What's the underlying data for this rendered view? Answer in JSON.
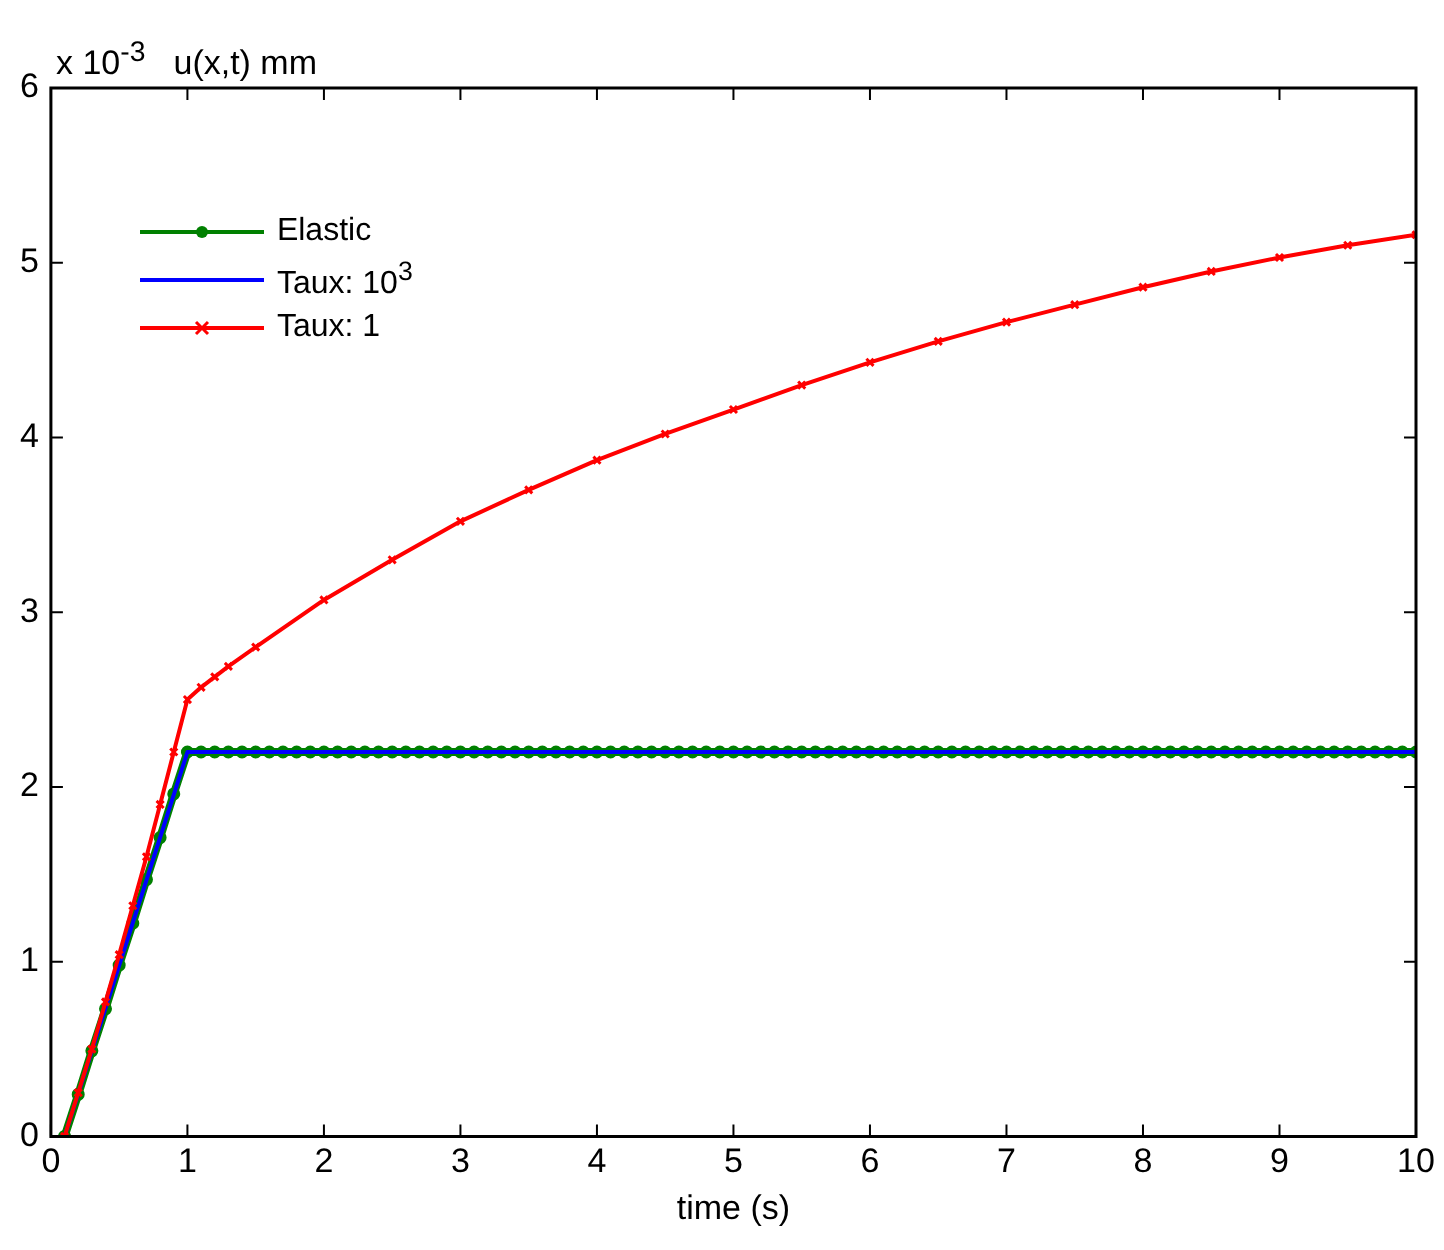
{
  "chart_data": {
    "type": "line",
    "xlabel": "time (s)",
    "ylabel": "u(x,t) mm",
    "annotations": [
      "x 10$^{-3}$"
    ],
    "xlim": [
      0,
      10
    ],
    "xticks": [
      0,
      1,
      2,
      3,
      4,
      5,
      6,
      7,
      8,
      9,
      10
    ],
    "ylim": [
      0,
      6
    ],
    "yticks": [
      0,
      1,
      2,
      3,
      4,
      5,
      6
    ],
    "grid": false,
    "legend": "top left",
    "line_style": "solid",
    "series": [
      {
        "name": "Elastic",
        "color": "#008000",
        "marker": "circle",
        "x": [
          0.1,
          0.2,
          0.3,
          0.4,
          0.5,
          0.6,
          0.7,
          0.8,
          0.9,
          1,
          1.1,
          1.2,
          1.3,
          1.4,
          1.5,
          1.6,
          1.7,
          1.8,
          1.9,
          2,
          2.1,
          2.2,
          2.3,
          2.4,
          2.5,
          2.6,
          2.7,
          2.8,
          2.9,
          3,
          3.1,
          3.2,
          3.3,
          3.4,
          3.5,
          3.6,
          3.7,
          3.8,
          3.9,
          4,
          4.1,
          4.2,
          4.3,
          4.4,
          4.5,
          4.6,
          4.7,
          4.8,
          4.9,
          5,
          5.1,
          5.2,
          5.3,
          5.4,
          5.5,
          5.6,
          5.7,
          5.8,
          5.9,
          6,
          6.1,
          6.2,
          6.3,
          6.4,
          6.5,
          6.6,
          6.7,
          6.8,
          6.9,
          7,
          7.1,
          7.2,
          7.3,
          7.4,
          7.5,
          7.6,
          7.7,
          7.8,
          7.9,
          8,
          8.1,
          8.2,
          8.3,
          8.4,
          8.5,
          8.6,
          8.7,
          8.8,
          8.9,
          9,
          9.1,
          9.2,
          9.3,
          9.4,
          9.5,
          9.6,
          9.7,
          9.8,
          9.9,
          10
        ],
        "values": [
          0,
          0.24,
          0.49,
          0.73,
          0.98,
          1.22,
          1.47,
          1.71,
          1.96,
          2.2,
          2.2,
          2.2,
          2.2,
          2.2,
          2.2,
          2.2,
          2.2,
          2.2,
          2.2,
          2.2,
          2.2,
          2.2,
          2.2,
          2.2,
          2.2,
          2.2,
          2.2,
          2.2,
          2.2,
          2.2,
          2.2,
          2.2,
          2.2,
          2.2,
          2.2,
          2.2,
          2.2,
          2.2,
          2.2,
          2.2,
          2.2,
          2.2,
          2.2,
          2.2,
          2.2,
          2.2,
          2.2,
          2.2,
          2.2,
          2.2,
          2.2,
          2.2,
          2.2,
          2.2,
          2.2,
          2.2,
          2.2,
          2.2,
          2.2,
          2.2,
          2.2,
          2.2,
          2.2,
          2.2,
          2.2,
          2.2,
          2.2,
          2.2,
          2.2,
          2.2,
          2.2,
          2.2,
          2.2,
          2.2,
          2.2,
          2.2,
          2.2,
          2.2,
          2.2,
          2.2,
          2.2,
          2.2,
          2.2,
          2.2,
          2.2,
          2.2,
          2.2,
          2.2,
          2.2,
          2.2,
          2.2,
          2.2,
          2.2,
          2.2,
          2.2,
          2.2,
          2.2,
          2.2,
          2.2,
          2.2
        ]
      },
      {
        "name": "Taux: 10$^{3}$",
        "color": "#0000ff",
        "marker": "none",
        "x": [
          0.1,
          1,
          10
        ],
        "values": [
          0,
          2.2,
          2.2
        ]
      },
      {
        "name": "Taux: 1",
        "color": "#ff0000",
        "marker": "cross",
        "x": [
          0.1,
          0.2,
          0.3,
          0.4,
          0.5,
          0.6,
          0.7,
          0.8,
          0.9,
          1,
          1.1,
          1.2,
          1.3,
          1.5,
          2,
          2.5,
          3,
          3.5,
          4,
          4.5,
          5,
          5.5,
          6,
          6.5,
          7,
          7.5,
          8,
          8.5,
          9,
          9.5,
          10
        ],
        "values": [
          0,
          0.25,
          0.5,
          0.77,
          1.04,
          1.32,
          1.6,
          1.9,
          2.2,
          2.5,
          2.57,
          2.63,
          2.69,
          2.8,
          3.07,
          3.3,
          3.52,
          3.7,
          3.87,
          4.02,
          4.16,
          4.3,
          4.43,
          4.55,
          4.66,
          4.76,
          4.86,
          4.95,
          5.03,
          5.1,
          5.16
        ]
      }
    ]
  }
}
